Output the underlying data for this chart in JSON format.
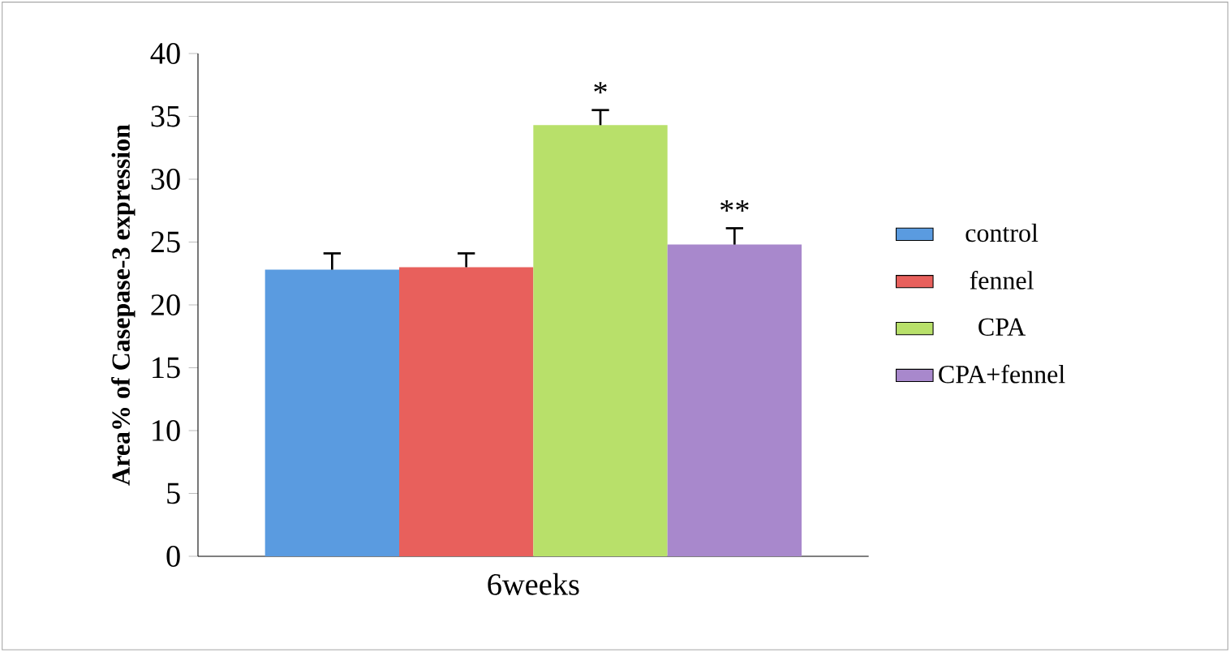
{
  "chart_data": {
    "type": "bar",
    "ylabel": "Area% of Casepase-3 expression",
    "categories": [
      "6weeks"
    ],
    "series": [
      {
        "name": "control",
        "color": "#5a9be0",
        "values": [
          22.8
        ],
        "errors": [
          1.3
        ]
      },
      {
        "name": "fennel",
        "color": "#e8605c",
        "values": [
          23.0
        ],
        "errors": [
          1.1
        ]
      },
      {
        "name": "CPA",
        "color": "#b8e06a",
        "values": [
          34.3
        ],
        "errors": [
          1.2
        ],
        "value_labels": [
          "*"
        ]
      },
      {
        "name": "CPA+fennel",
        "color": "#a888cc",
        "values": [
          24.8
        ],
        "errors": [
          1.3
        ],
        "value_labels": [
          "**"
        ]
      }
    ],
    "ylim": [
      0,
      40
    ],
    "yticks": [
      0,
      5,
      10,
      15,
      20,
      25,
      30,
      35,
      40
    ],
    "grid": false,
    "legend": "right"
  }
}
